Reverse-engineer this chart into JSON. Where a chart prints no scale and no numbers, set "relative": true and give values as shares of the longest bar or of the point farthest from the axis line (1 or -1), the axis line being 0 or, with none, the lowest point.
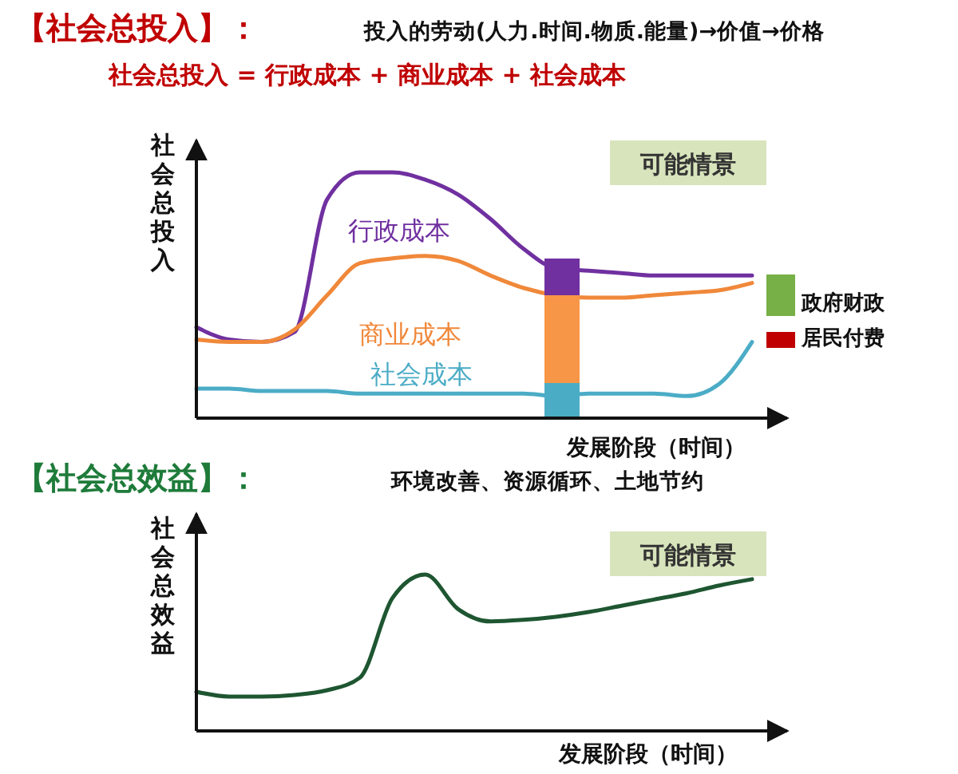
{
  "chart_data": [
    {
      "type": "line",
      "title": "【社会总投入】：",
      "subtitle": "投入的劳动(人力.时间.物质.能量)→价值→价格",
      "ylabel": "社会总投入",
      "xlabel": "发展阶段（时间）",
      "relative": true,
      "categories": [
        null,
        null,
        null,
        null,
        null,
        null,
        null,
        null,
        null,
        null,
        null,
        null,
        null,
        null,
        null,
        null,
        null,
        null
      ],
      "annotations": [
        "社会总投入 = 行政成本 + 商业成本 + 社会成本",
        "可能情景",
        "政府财政",
        "居民付费"
      ],
      "series": [
        {
          "name": "行政成本",
          "color": "#7030a0",
          "values": [
            0.37,
            0.32,
            0.31,
            0.35,
            0.89,
            1,
            1,
            0.97,
            0.91,
            0.81,
            0.69,
            0.61,
            0.6,
            0.59,
            0.58,
            0.58,
            0.58,
            0.58
          ]
        },
        {
          "name": "商业成本",
          "color": "#f0883a",
          "values": [
            0.32,
            0.31,
            0.31,
            0.36,
            0.5,
            0.63,
            0.65,
            0.66,
            0.64,
            0.58,
            0.53,
            0.5,
            0.49,
            0.49,
            0.5,
            0.51,
            0.52,
            0.55
          ]
        },
        {
          "name": "社会成本",
          "color": "#4bacc6",
          "values": [
            0.12,
            0.12,
            0.11,
            0.11,
            0.11,
            0.1,
            0.1,
            0.1,
            0.1,
            0.1,
            0.1,
            0.09,
            0.1,
            0.1,
            0.1,
            0.09,
            0.14,
            0.31
          ]
        }
      ]
    },
    {
      "type": "line",
      "title": "【社会总效益】：",
      "subtitle": "环境改善、资源循环、土地节约",
      "ylabel": "社会总效益",
      "xlabel": "发展阶段（时间）",
      "relative": true,
      "categories": [
        null,
        null,
        null,
        null,
        null,
        null,
        null,
        null,
        null,
        null,
        null,
        null,
        null,
        null,
        null,
        null,
        null,
        null
      ],
      "annotations": [
        "可能情景"
      ],
      "series": [
        {
          "color": "#1e5631",
          "values": [
            0.25,
            0.22,
            0.22,
            0.23,
            0.26,
            0.34,
            0.85,
            1,
            0.78,
            0.7,
            0.71,
            0.73,
            0.76,
            0.8,
            0.84,
            0.88,
            0.93,
            0.97
          ]
        }
      ]
    },
    {
      "type": "bar",
      "relative": true,
      "stacked": true,
      "categories": [
        null
      ],
      "series": [
        {
          "color": "#4bacc6",
          "values": [
            0.22
          ]
        },
        {
          "color": "#f79646",
          "values": [
            0.55
          ]
        },
        {
          "color": "#7030a0",
          "values": [
            0.23
          ]
        }
      ]
    }
  ]
}
